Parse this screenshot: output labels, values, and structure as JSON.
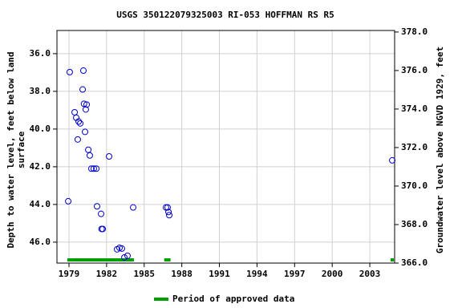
{
  "chart_data": {
    "type": "scatter",
    "title": "USGS 350122079325003 RI-053 HOFFMAN RS R5",
    "ylabel": [
      "Depth to water level, feet below land",
      "surface"
    ],
    "y2label": "Groundwater level above NGVD 1929, feet",
    "xlim": [
      1978.04,
      2004.98
    ],
    "xticks": [
      1979,
      1982,
      1985,
      1988,
      1991,
      1994,
      1997,
      2000,
      2003
    ],
    "ylim": [
      47.11,
      34.77
    ],
    "yticks": [
      {
        "value": 36,
        "label": "36.0"
      },
      {
        "value": 38,
        "label": "38.0"
      },
      {
        "value": 40,
        "label": "40.0"
      },
      {
        "value": 42,
        "label": "42.0"
      },
      {
        "value": 44,
        "label": "44.0"
      },
      {
        "value": 46,
        "label": "46.0"
      }
    ],
    "y2lim": [
      366.0,
      378.08
    ],
    "y2ticks": [
      {
        "value": 366,
        "label": "366.0"
      },
      {
        "value": 368,
        "label": "368.0"
      },
      {
        "value": 370,
        "label": "370.0"
      },
      {
        "value": 372,
        "label": "372.0"
      },
      {
        "value": 374,
        "label": "374.0"
      },
      {
        "value": 376,
        "label": "376.0"
      },
      {
        "value": 378,
        "label": "378.0"
      }
    ],
    "grid": true,
    "color": "#0000cc",
    "x": [
      1978.94,
      1979.06,
      1979.45,
      1979.58,
      1979.7,
      1979.77,
      1979.9,
      1980.09,
      1980.15,
      1980.2,
      1980.28,
      1980.34,
      1980.41,
      1980.54,
      1980.66,
      1980.79,
      1980.98,
      1981.18,
      1981.24,
      1981.56,
      1981.6,
      1981.69,
      1982.2,
      1982.84,
      1983.03,
      1983.22,
      1983.42,
      1983.67,
      1984.12,
      1986.74,
      1986.87,
      1986.94,
      1987.0,
      2004.79
    ],
    "values": [
      43.83,
      36.98,
      39.11,
      39.4,
      40.55,
      39.6,
      39.7,
      37.9,
      36.9,
      38.66,
      40.15,
      38.96,
      38.7,
      41.1,
      41.4,
      42.1,
      42.1,
      42.1,
      44.1,
      44.5,
      45.3,
      45.3,
      41.45,
      46.38,
      46.3,
      46.34,
      46.81,
      46.72,
      44.16,
      44.16,
      44.16,
      44.4,
      44.57,
      41.66
    ],
    "approved_periods": [
      [
        1978.87,
        1984.18
      ],
      [
        1986.6,
        1987.1
      ],
      [
        2004.66,
        2004.92
      ]
    ],
    "approved_color": "#00a000",
    "legend": "Period of approved data"
  }
}
